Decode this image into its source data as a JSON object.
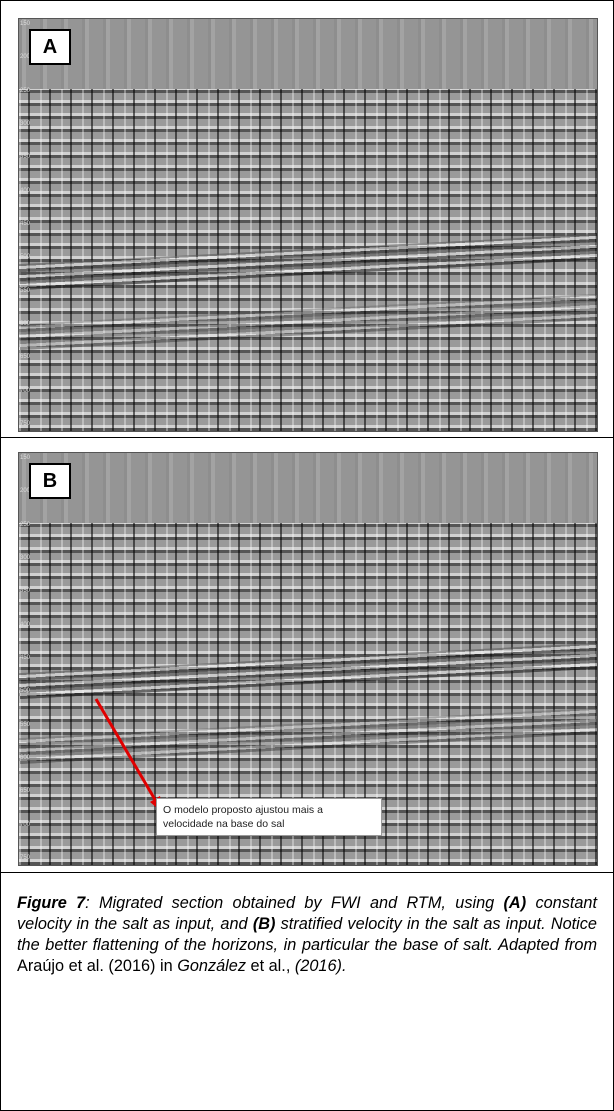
{
  "panel_a": {
    "label": "A",
    "depth_labels": [
      "150",
      "200",
      "250",
      "300",
      "350",
      "400",
      "450",
      "500",
      "550",
      "600",
      "650",
      "700",
      "750"
    ]
  },
  "panel_b": {
    "label": "B",
    "depth_labels": [
      "150",
      "200",
      "250",
      "300",
      "350",
      "400",
      "450",
      "500",
      "550",
      "600",
      "650",
      "700",
      "750"
    ],
    "annotation": "O modelo proposto ajustou mais a velocidade na base do sal"
  },
  "caption": [
    "Figure 7",
    ": Migrated section obtained by FWI and RTM, using ",
    "(A)",
    " constant velocity in the salt as input, and ",
    "(B)",
    " stratified velocity in the salt as input. Notice the better flattening of the horizons, in particular the base of salt. ",
    "Adapted from",
    " Araújo et al. (2016) in ",
    "González",
    " et al., ",
    "(2016)."
  ]
}
